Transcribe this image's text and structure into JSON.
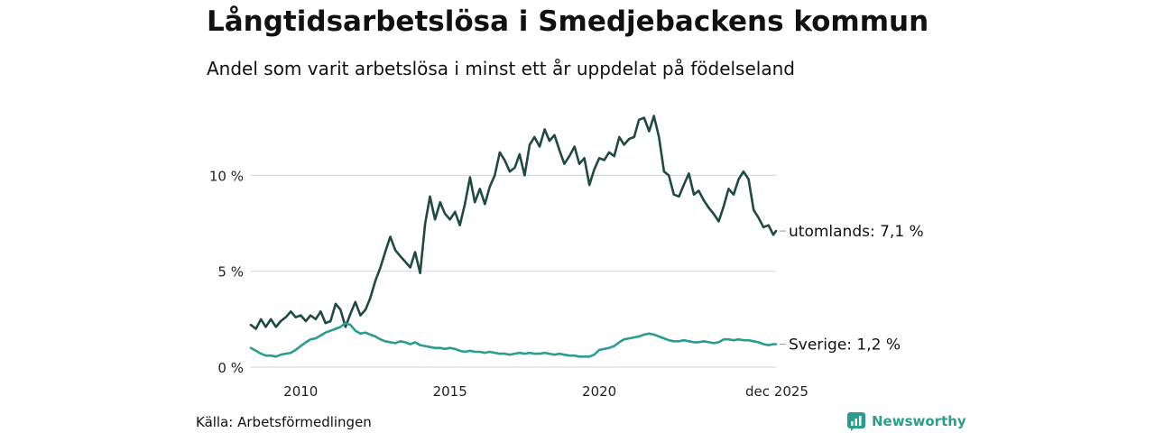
{
  "title": "Långtidsarbetslösa i Smedjebackens kommun",
  "subtitle": "Andel som varit arbetslösa i minst ett år uppdelat på födelseland",
  "source": "Källa: Arbetsförmedlingen",
  "brand": {
    "name": "Newsworthy",
    "color": "#2a9d8f"
  },
  "chart_data": {
    "type": "line",
    "title": "Långtidsarbetslösa i Smedjebackens kommun",
    "xlabel": "",
    "ylabel": "",
    "ylim": [
      0,
      13.5
    ],
    "xlim": [
      2008.33,
      2025.92
    ],
    "grid": true,
    "y_ticks": [
      {
        "value": 0,
        "label": "0 %"
      },
      {
        "value": 5,
        "label": "5 %"
      },
      {
        "value": 10,
        "label": "10 %"
      }
    ],
    "x_ticks": [
      {
        "value": 2010,
        "label": "2010"
      },
      {
        "value": 2015,
        "label": "2015"
      },
      {
        "value": 2020,
        "label": "2020"
      },
      {
        "value": 2025.92,
        "label": "dec 2025"
      }
    ],
    "series": [
      {
        "name": "utomlands",
        "end_label": "utomlands: 7,1 %",
        "color": "#1f4a42",
        "points": [
          [
            2008.33,
            2.2
          ],
          [
            2008.5,
            2.0
          ],
          [
            2008.67,
            2.5
          ],
          [
            2008.83,
            2.1
          ],
          [
            2009.0,
            2.5
          ],
          [
            2009.17,
            2.1
          ],
          [
            2009.33,
            2.4
          ],
          [
            2009.5,
            2.6
          ],
          [
            2009.67,
            2.9
          ],
          [
            2009.83,
            2.6
          ],
          [
            2010.0,
            2.7
          ],
          [
            2010.17,
            2.4
          ],
          [
            2010.33,
            2.7
          ],
          [
            2010.5,
            2.5
          ],
          [
            2010.67,
            2.9
          ],
          [
            2010.83,
            2.3
          ],
          [
            2011.0,
            2.4
          ],
          [
            2011.17,
            3.3
          ],
          [
            2011.33,
            3.0
          ],
          [
            2011.5,
            2.1
          ],
          [
            2011.67,
            2.8
          ],
          [
            2011.83,
            3.4
          ],
          [
            2012.0,
            2.7
          ],
          [
            2012.17,
            3.0
          ],
          [
            2012.33,
            3.6
          ],
          [
            2012.5,
            4.5
          ],
          [
            2012.67,
            5.2
          ],
          [
            2012.83,
            6.0
          ],
          [
            2013.0,
            6.8
          ],
          [
            2013.17,
            6.1
          ],
          [
            2013.33,
            5.8
          ],
          [
            2013.5,
            5.5
          ],
          [
            2013.67,
            5.2
          ],
          [
            2013.83,
            6.0
          ],
          [
            2014.0,
            4.9
          ],
          [
            2014.17,
            7.5
          ],
          [
            2014.33,
            8.9
          ],
          [
            2014.5,
            7.7
          ],
          [
            2014.67,
            8.6
          ],
          [
            2014.83,
            8.0
          ],
          [
            2015.0,
            7.7
          ],
          [
            2015.17,
            8.1
          ],
          [
            2015.33,
            7.4
          ],
          [
            2015.5,
            8.5
          ],
          [
            2015.67,
            9.9
          ],
          [
            2015.83,
            8.6
          ],
          [
            2016.0,
            9.3
          ],
          [
            2016.17,
            8.5
          ],
          [
            2016.33,
            9.4
          ],
          [
            2016.5,
            10.0
          ],
          [
            2016.67,
            11.2
          ],
          [
            2016.83,
            10.8
          ],
          [
            2017.0,
            10.2
          ],
          [
            2017.17,
            10.4
          ],
          [
            2017.33,
            11.1
          ],
          [
            2017.5,
            10.0
          ],
          [
            2017.67,
            11.6
          ],
          [
            2017.83,
            12.0
          ],
          [
            2018.0,
            11.5
          ],
          [
            2018.17,
            12.4
          ],
          [
            2018.33,
            11.8
          ],
          [
            2018.5,
            12.1
          ],
          [
            2018.67,
            11.3
          ],
          [
            2018.83,
            10.6
          ],
          [
            2019.0,
            11.0
          ],
          [
            2019.17,
            11.5
          ],
          [
            2019.33,
            10.6
          ],
          [
            2019.5,
            10.9
          ],
          [
            2019.67,
            9.5
          ],
          [
            2019.83,
            10.3
          ],
          [
            2020.0,
            10.9
          ],
          [
            2020.17,
            10.8
          ],
          [
            2020.33,
            11.2
          ],
          [
            2020.5,
            11.0
          ],
          [
            2020.67,
            12.0
          ],
          [
            2020.83,
            11.6
          ],
          [
            2021.0,
            11.9
          ],
          [
            2021.17,
            12.0
          ],
          [
            2021.33,
            12.9
          ],
          [
            2021.5,
            13.0
          ],
          [
            2021.67,
            12.3
          ],
          [
            2021.83,
            13.1
          ],
          [
            2022.0,
            12.0
          ],
          [
            2022.17,
            10.2
          ],
          [
            2022.33,
            10.0
          ],
          [
            2022.5,
            9.0
          ],
          [
            2022.67,
            8.9
          ],
          [
            2022.83,
            9.5
          ],
          [
            2023.0,
            10.1
          ],
          [
            2023.17,
            9.0
          ],
          [
            2023.33,
            9.2
          ],
          [
            2023.5,
            8.7
          ],
          [
            2023.67,
            8.3
          ],
          [
            2023.83,
            8.0
          ],
          [
            2024.0,
            7.6
          ],
          [
            2024.17,
            8.4
          ],
          [
            2024.33,
            9.3
          ],
          [
            2024.5,
            9.0
          ],
          [
            2024.67,
            9.8
          ],
          [
            2024.83,
            10.2
          ],
          [
            2025.0,
            9.8
          ],
          [
            2025.17,
            8.2
          ],
          [
            2025.33,
            7.8
          ],
          [
            2025.5,
            7.3
          ],
          [
            2025.67,
            7.4
          ],
          [
            2025.83,
            6.9
          ],
          [
            2025.92,
            7.1
          ]
        ]
      },
      {
        "name": "Sverige",
        "end_label": "Sverige: 1,2 %",
        "color": "#2a9d8f",
        "points": [
          [
            2008.33,
            1.0
          ],
          [
            2008.5,
            0.85
          ],
          [
            2008.67,
            0.7
          ],
          [
            2008.83,
            0.6
          ],
          [
            2009.0,
            0.6
          ],
          [
            2009.17,
            0.55
          ],
          [
            2009.33,
            0.65
          ],
          [
            2009.5,
            0.7
          ],
          [
            2009.67,
            0.75
          ],
          [
            2009.83,
            0.9
          ],
          [
            2010.0,
            1.1
          ],
          [
            2010.17,
            1.3
          ],
          [
            2010.33,
            1.45
          ],
          [
            2010.5,
            1.5
          ],
          [
            2010.67,
            1.65
          ],
          [
            2010.83,
            1.8
          ],
          [
            2011.0,
            1.9
          ],
          [
            2011.17,
            2.0
          ],
          [
            2011.33,
            2.1
          ],
          [
            2011.5,
            2.3
          ],
          [
            2011.67,
            2.2
          ],
          [
            2011.83,
            1.9
          ],
          [
            2012.0,
            1.75
          ],
          [
            2012.17,
            1.8
          ],
          [
            2012.33,
            1.7
          ],
          [
            2012.5,
            1.6
          ],
          [
            2012.67,
            1.45
          ],
          [
            2012.83,
            1.35
          ],
          [
            2013.0,
            1.3
          ],
          [
            2013.17,
            1.25
          ],
          [
            2013.33,
            1.35
          ],
          [
            2013.5,
            1.3
          ],
          [
            2013.67,
            1.2
          ],
          [
            2013.83,
            1.3
          ],
          [
            2014.0,
            1.15
          ],
          [
            2014.17,
            1.1
          ],
          [
            2014.33,
            1.05
          ],
          [
            2014.5,
            1.0
          ],
          [
            2014.67,
            1.0
          ],
          [
            2014.83,
            0.95
          ],
          [
            2015.0,
            1.0
          ],
          [
            2015.17,
            0.95
          ],
          [
            2015.33,
            0.85
          ],
          [
            2015.5,
            0.8
          ],
          [
            2015.67,
            0.85
          ],
          [
            2015.83,
            0.8
          ],
          [
            2016.0,
            0.8
          ],
          [
            2016.17,
            0.75
          ],
          [
            2016.33,
            0.8
          ],
          [
            2016.5,
            0.75
          ],
          [
            2016.67,
            0.7
          ],
          [
            2016.83,
            0.7
          ],
          [
            2017.0,
            0.65
          ],
          [
            2017.17,
            0.7
          ],
          [
            2017.33,
            0.75
          ],
          [
            2017.5,
            0.7
          ],
          [
            2017.67,
            0.75
          ],
          [
            2017.83,
            0.7
          ],
          [
            2018.0,
            0.7
          ],
          [
            2018.17,
            0.75
          ],
          [
            2018.33,
            0.7
          ],
          [
            2018.5,
            0.65
          ],
          [
            2018.67,
            0.7
          ],
          [
            2018.83,
            0.65
          ],
          [
            2019.0,
            0.6
          ],
          [
            2019.17,
            0.6
          ],
          [
            2019.33,
            0.55
          ],
          [
            2019.5,
            0.55
          ],
          [
            2019.67,
            0.55
          ],
          [
            2019.83,
            0.65
          ],
          [
            2020.0,
            0.9
          ],
          [
            2020.17,
            0.95
          ],
          [
            2020.33,
            1.0
          ],
          [
            2020.5,
            1.1
          ],
          [
            2020.67,
            1.3
          ],
          [
            2020.83,
            1.45
          ],
          [
            2021.0,
            1.5
          ],
          [
            2021.17,
            1.55
          ],
          [
            2021.33,
            1.6
          ],
          [
            2021.5,
            1.7
          ],
          [
            2021.67,
            1.75
          ],
          [
            2021.83,
            1.7
          ],
          [
            2022.0,
            1.6
          ],
          [
            2022.17,
            1.5
          ],
          [
            2022.33,
            1.4
          ],
          [
            2022.5,
            1.35
          ],
          [
            2022.67,
            1.35
          ],
          [
            2022.83,
            1.4
          ],
          [
            2023.0,
            1.35
          ],
          [
            2023.17,
            1.3
          ],
          [
            2023.33,
            1.3
          ],
          [
            2023.5,
            1.35
          ],
          [
            2023.67,
            1.3
          ],
          [
            2023.83,
            1.25
          ],
          [
            2024.0,
            1.3
          ],
          [
            2024.17,
            1.45
          ],
          [
            2024.33,
            1.45
          ],
          [
            2024.5,
            1.4
          ],
          [
            2024.67,
            1.45
          ],
          [
            2024.83,
            1.4
          ],
          [
            2025.0,
            1.4
          ],
          [
            2025.17,
            1.35
          ],
          [
            2025.33,
            1.3
          ],
          [
            2025.5,
            1.2
          ],
          [
            2025.67,
            1.15
          ],
          [
            2025.83,
            1.2
          ],
          [
            2025.92,
            1.2
          ]
        ]
      }
    ]
  }
}
